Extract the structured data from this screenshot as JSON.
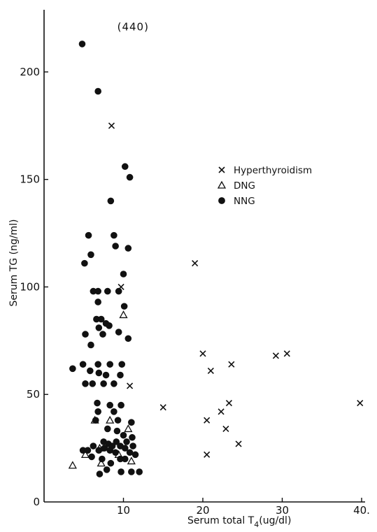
{
  "chart_data": {
    "type": "scatter",
    "xlabel": "Serum total T",
    "xlabel_sub": "4",
    "xlabel_unit": "(ug/dl)",
    "ylabel": "Serum TG (ng/ml)",
    "xlim": [
      0,
      40
    ],
    "ylim": [
      0,
      225
    ],
    "x_ticks": [
      10,
      20,
      30,
      40
    ],
    "x_tick_labels": [
      "10",
      "20",
      "30",
      "40."
    ],
    "y_ticks": [
      0,
      50,
      100,
      150,
      200
    ],
    "y_tick_labels": [
      "0",
      "50",
      "100",
      "150",
      "200"
    ],
    "legend_position": "upper-right",
    "annotations": [
      {
        "text": "(440)",
        "x": 8.6,
        "y": 221
      }
    ],
    "series": [
      {
        "name": "Hyperthyroidism",
        "marker": "x",
        "points": [
          [
            8.5,
            175
          ],
          [
            9.7,
            100
          ],
          [
            10.8,
            54
          ],
          [
            15.0,
            44
          ],
          [
            19.0,
            111
          ],
          [
            20.0,
            69
          ],
          [
            20.5,
            38
          ],
          [
            21.0,
            61
          ],
          [
            20.5,
            22
          ],
          [
            22.3,
            42
          ],
          [
            22.9,
            34
          ],
          [
            23.3,
            46
          ],
          [
            23.6,
            64
          ],
          [
            24.5,
            27
          ],
          [
            29.2,
            68
          ],
          [
            30.6,
            69
          ],
          [
            39.8,
            46
          ]
        ]
      },
      {
        "name": "DNG",
        "marker": "triangle",
        "points": [
          [
            3.6,
            17
          ],
          [
            5.2,
            22
          ],
          [
            6.4,
            38
          ],
          [
            7.0,
            25
          ],
          [
            7.2,
            18
          ],
          [
            8.3,
            38
          ],
          [
            10.0,
            87
          ],
          [
            10.6,
            34
          ],
          [
            11.0,
            19
          ],
          [
            9.4,
            22
          ]
        ]
      },
      {
        "name": "NNG",
        "marker": "dot",
        "points": [
          [
            4.8,
            213
          ],
          [
            6.8,
            191
          ],
          [
            10.2,
            156
          ],
          [
            10.8,
            151
          ],
          [
            8.4,
            140
          ],
          [
            5.6,
            124
          ],
          [
            8.8,
            124
          ],
          [
            9.0,
            119
          ],
          [
            10.6,
            118
          ],
          [
            5.9,
            115
          ],
          [
            5.1,
            111
          ],
          [
            10.0,
            106
          ],
          [
            6.2,
            98
          ],
          [
            6.8,
            98
          ],
          [
            8.0,
            98
          ],
          [
            9.4,
            98
          ],
          [
            6.8,
            93
          ],
          [
            10.1,
            91
          ],
          [
            6.6,
            85
          ],
          [
            7.2,
            85
          ],
          [
            7.8,
            83
          ],
          [
            8.2,
            82
          ],
          [
            6.9,
            81
          ],
          [
            5.2,
            78
          ],
          [
            7.4,
            78
          ],
          [
            9.4,
            79
          ],
          [
            10.6,
            76
          ],
          [
            5.9,
            73
          ],
          [
            3.6,
            62
          ],
          [
            4.9,
            64
          ],
          [
            5.8,
            61
          ],
          [
            6.8,
            64
          ],
          [
            8.3,
            64
          ],
          [
            9.8,
            64
          ],
          [
            6.9,
            60
          ],
          [
            7.8,
            59
          ],
          [
            9.6,
            59
          ],
          [
            5.2,
            55
          ],
          [
            6.1,
            55
          ],
          [
            7.5,
            55
          ],
          [
            8.8,
            55
          ],
          [
            6.7,
            46
          ],
          [
            8.3,
            45
          ],
          [
            9.7,
            45
          ],
          [
            6.8,
            42
          ],
          [
            8.8,
            42
          ],
          [
            6.5,
            38
          ],
          [
            9.3,
            38
          ],
          [
            11.0,
            37
          ],
          [
            8.0,
            34
          ],
          [
            9.2,
            33
          ],
          [
            10.0,
            31
          ],
          [
            11.1,
            30
          ],
          [
            7.5,
            28
          ],
          [
            8.1,
            27
          ],
          [
            9.1,
            28
          ],
          [
            10.4,
            28
          ],
          [
            6.2,
            26
          ],
          [
            7.6,
            25
          ],
          [
            8.6,
            26
          ],
          [
            9.6,
            26
          ],
          [
            10.2,
            25
          ],
          [
            11.2,
            26
          ],
          [
            4.9,
            24
          ],
          [
            5.5,
            24
          ],
          [
            6.9,
            24
          ],
          [
            8.3,
            24
          ],
          [
            9.0,
            23
          ],
          [
            10.8,
            23
          ],
          [
            11.5,
            22
          ],
          [
            6.0,
            21
          ],
          [
            7.3,
            20
          ],
          [
            9.6,
            20
          ],
          [
            10.2,
            20
          ],
          [
            8.4,
            18
          ],
          [
            7.9,
            15
          ],
          [
            9.7,
            14
          ],
          [
            11.0,
            14
          ],
          [
            12.0,
            14
          ],
          [
            7.0,
            13
          ]
        ]
      }
    ]
  }
}
